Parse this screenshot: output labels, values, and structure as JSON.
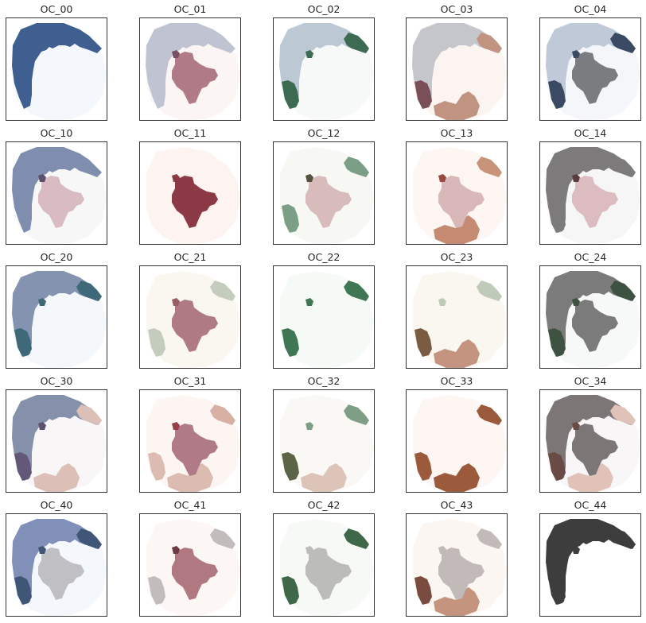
{
  "figure": {
    "panels": [
      {
        "title": "OC_00",
        "base": "#f4f8fd",
        "colors": {
          "arc": "#3e5f8f",
          "east": "#f4f8fd",
          "west": "#f4f8fd",
          "bottom": "#f4f8fd",
          "center": "#f4f8fd",
          "inner": "#f4f8fd"
        }
      },
      {
        "title": "OC_01",
        "base": "#fbf6f4",
        "colors": {
          "arc": "#c0c4d2",
          "east": "#fbf6f4",
          "west": "#fbf6f4",
          "bottom": "#fbf6f4",
          "center": "#b07a86",
          "inner": "#7a4f63"
        }
      },
      {
        "title": "OC_02",
        "base": "#f6f9f8",
        "colors": {
          "arc": "#bcc8d3",
          "east": "#3d6b52",
          "west": "#3d6b52",
          "bottom": "#f6f9f8",
          "center": "#f6f9f8",
          "inner": "#3d6b52"
        }
      },
      {
        "title": "OC_03",
        "base": "#fbf4f1",
        "colors": {
          "arc": "#c4c6cc",
          "east": "#c09480",
          "west": "#7a5058",
          "bottom": "#c09480",
          "center": "#fbf4f1",
          "inner": "#fbf4f1"
        }
      },
      {
        "title": "OC_04",
        "base": "#f4f6f9",
        "colors": {
          "arc": "#c0c9d8",
          "east": "#3a4a62",
          "west": "#3a4a62",
          "bottom": "#f4f6f9",
          "center": "#7a7c80",
          "inner": "#3a4a62"
        }
      },
      {
        "title": "OC_10",
        "base": "#f7f7f8",
        "colors": {
          "arc": "#7f8eae",
          "east": "#f7f7f8",
          "west": "#f7f7f8",
          "bottom": "#f7f7f8",
          "center": "#d8bcc2",
          "inner": "#5c4f6e"
        }
      },
      {
        "title": "OC_11",
        "base": "#fdf4f1",
        "colors": {
          "arc": "#fdf4f1",
          "east": "#fdf4f1",
          "west": "#fdf4f1",
          "bottom": "#fdf4f1",
          "center": "#8b3a45",
          "inner": "#8b3a45"
        }
      },
      {
        "title": "OC_12",
        "base": "#f7f8f4",
        "colors": {
          "arc": "#f7f8f4",
          "east": "#7a9e86",
          "west": "#7a9e86",
          "bottom": "#f7f8f4",
          "center": "#d8bcbc",
          "inner": "#54523f"
        }
      },
      {
        "title": "OC_13",
        "base": "#fdf6f2",
        "colors": {
          "arc": "#fdf6f2",
          "east": "#c7947a",
          "west": "#fdf6f2",
          "bottom": "#c48a72",
          "center": "#d8b8b8",
          "inner": "#9d4a3e"
        }
      },
      {
        "title": "OC_14",
        "base": "#f7f6f6",
        "colors": {
          "arc": "#7c7a7a",
          "east": "#7c7a7a",
          "west": "#7c7a7a",
          "bottom": "#f7f6f6",
          "center": "#dcbcc0",
          "inner": "#5c3a42"
        }
      },
      {
        "title": "OC_20",
        "base": "#f4f8fa",
        "colors": {
          "arc": "#8494b0",
          "east": "#3f6878",
          "west": "#3f6878",
          "bottom": "#f4f8fa",
          "center": "#f4f8fa",
          "inner": "#3f6878"
        }
      },
      {
        "title": "OC_21",
        "base": "#faf6f0",
        "colors": {
          "arc": "#faf6f0",
          "east": "#c4ccbe",
          "west": "#c4ccbe",
          "bottom": "#faf6f0",
          "center": "#b07a84",
          "inner": "#9a5f66"
        }
      },
      {
        "title": "OC_22",
        "base": "#f6faf7",
        "colors": {
          "arc": "#f6faf7",
          "east": "#3f7754",
          "west": "#3f7754",
          "bottom": "#f6faf7",
          "center": "#f6faf7",
          "inner": "#3f7754"
        }
      },
      {
        "title": "OC_23",
        "base": "#faf7f0",
        "colors": {
          "arc": "#faf7f0",
          "east": "#c0cab8",
          "west": "#7a5c42",
          "bottom": "#c49480",
          "center": "#faf7f0",
          "inner": "#c0cab8"
        }
      },
      {
        "title": "OC_24",
        "base": "#f7f8f8",
        "colors": {
          "arc": "#7b7b7b",
          "east": "#3e5242",
          "west": "#3e5242",
          "bottom": "#f7f8f8",
          "center": "#7b7b7b",
          "inner": "#3e5242"
        }
      },
      {
        "title": "OC_30",
        "base": "#f8f6f6",
        "colors": {
          "arc": "#8590aa",
          "east": "#dcc0b8",
          "west": "#645878",
          "bottom": "#dcc0b8",
          "center": "#f8f6f6",
          "inner": "#5e5070"
        }
      },
      {
        "title": "OC_31",
        "base": "#fdf5f2",
        "colors": {
          "arc": "#fdf5f2",
          "east": "#d8b0a4",
          "west": "#dcbcb0",
          "bottom": "#dcbcb0",
          "center": "#b07a86",
          "inner": "#983f45"
        }
      },
      {
        "title": "OC_32",
        "base": "#f9f8f5",
        "colors": {
          "arc": "#f9f8f5",
          "east": "#7e9e86",
          "west": "#5c6448",
          "bottom": "#dcc4b8",
          "center": "#f9f8f5",
          "inner": "#7e9e86"
        }
      },
      {
        "title": "OC_33",
        "base": "#fdf6f2",
        "colors": {
          "arc": "#fdf6f2",
          "east": "#9b5a3c",
          "west": "#9b5a3c",
          "bottom": "#9b5a3c",
          "center": "#fdf6f2",
          "inner": "#fdf6f2"
        }
      },
      {
        "title": "OC_34",
        "base": "#f8f6f6",
        "colors": {
          "arc": "#7c7776",
          "east": "#e0c2b8",
          "west": "#6a4a44",
          "bottom": "#e0c2b8",
          "center": "#7c7776",
          "inner": "#6a4a44"
        }
      },
      {
        "title": "OC_40",
        "base": "#f4f7fb",
        "colors": {
          "arc": "#8090b8",
          "east": "#3f5677",
          "west": "#3f5677",
          "bottom": "#f4f7fb",
          "center": "#bfbfc4",
          "inner": "#3f5677"
        }
      },
      {
        "title": "OC_41",
        "base": "#fcf6f4",
        "colors": {
          "arc": "#fcf6f4",
          "east": "#c2bcbc",
          "west": "#c2bcbc",
          "bottom": "#fcf6f4",
          "center": "#b07880",
          "inner": "#6c3a44"
        }
      },
      {
        "title": "OC_42",
        "base": "#f7f9f6",
        "colors": {
          "arc": "#f7f9f6",
          "east": "#3e6848",
          "west": "#3e6848",
          "bottom": "#f7f9f6",
          "center": "#bcbdba",
          "inner": "#bcbdba"
        }
      },
      {
        "title": "OC_43",
        "base": "#fcf6f3",
        "colors": {
          "arc": "#fcf6f3",
          "east": "#c2bab8",
          "west": "#7a4c40",
          "bottom": "#c4947e",
          "center": "#c2bab8",
          "inner": "#c2bab8"
        }
      },
      {
        "title": "OC_44",
        "base": "#ffffff",
        "colors": {
          "arc": "#3d3d3d",
          "east": "#3d3d3d",
          "west": "#3d3d3d",
          "bottom": "#ffffff",
          "center": "#ffffff",
          "inner": "#3d3d3d"
        }
      }
    ]
  }
}
